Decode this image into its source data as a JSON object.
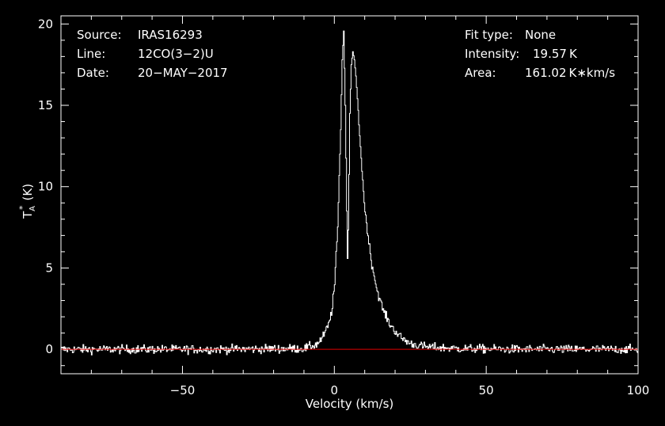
{
  "header_left": {
    "source_label": "Source:",
    "source_value": "IRAS16293",
    "line_label": "Line:",
    "line_value": "12CO(3−2)U",
    "date_label": "Date:",
    "date_value": "20−MAY−2017"
  },
  "header_right": {
    "fit_label": "Fit type:",
    "fit_value": "None",
    "intensity_label": "Intensity:",
    "intensity_value": "19.57 K",
    "area_label": "Area:",
    "area_value": "161.02 K∗km/s"
  },
  "colors": {
    "background": "#000000",
    "spectrum": "#ffffff",
    "baseline": "#e00000",
    "axes": "#ffffff"
  },
  "chart_data": {
    "type": "line",
    "title": "",
    "xlabel": "Velocity (km/s)",
    "ylabel": "T",
    "ylabel_sub": "A",
    "ylabel_sup": "*",
    "ylabel_unit": "(K)",
    "xlim": [
      -90,
      100
    ],
    "ylim": [
      -1.5,
      20.5
    ],
    "xticks": [
      -50,
      0,
      50,
      100
    ],
    "xtick_labels": [
      "−50",
      "0",
      "50",
      "100"
    ],
    "yticks": [
      0,
      5,
      10,
      15,
      20
    ],
    "ytick_labels": [
      "0",
      "5",
      "10",
      "15",
      "20"
    ],
    "grid": false,
    "legend": "none",
    "baseline_y": 0,
    "noise_rms": 0.25,
    "series": [
      {
        "x": [
          -90,
          -40,
          -10,
          -6,
          -4,
          -2,
          -1,
          0,
          1,
          2,
          2.5,
          3,
          3.5,
          4,
          4.3,
          4.6,
          5,
          5.5,
          6,
          6.5,
          7,
          8,
          9,
          10,
          12,
          14,
          16,
          18,
          20,
          22,
          25,
          30,
          40,
          60,
          100
        ],
        "y": [
          0,
          0,
          0.05,
          0.3,
          0.7,
          1.5,
          2.3,
          4.0,
          7.5,
          13.5,
          17.8,
          19.57,
          15.0,
          8.5,
          5.0,
          8.5,
          14.5,
          17.5,
          18.3,
          17.8,
          16.8,
          14.0,
          11.0,
          8.5,
          5.5,
          3.6,
          2.4,
          1.6,
          1.1,
          0.7,
          0.35,
          0.15,
          0.05,
          0,
          0
        ]
      }
    ]
  }
}
